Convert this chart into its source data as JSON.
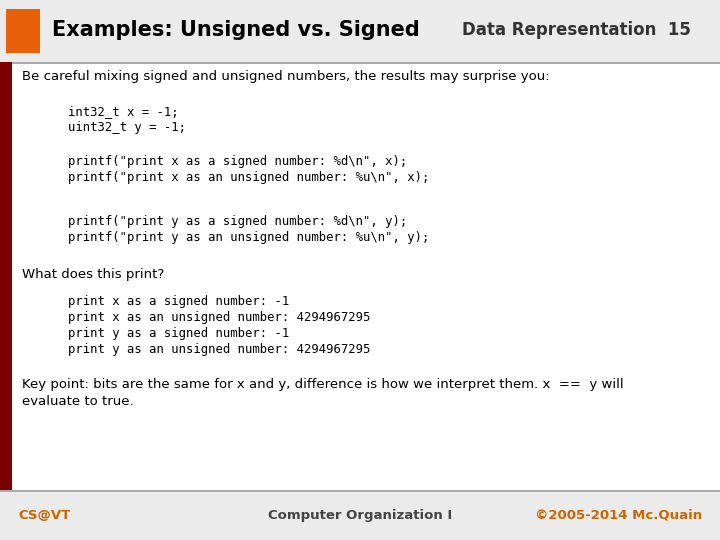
{
  "title_left": "Examples: Unsigned vs. Signed",
  "title_right": "Data Representation  15",
  "orange_rect_color": "#E8600A",
  "dark_red_left_bar": "#7B0000",
  "bg_color": "#EBEBEB",
  "header_bg": "#EBEBEB",
  "body_bg": "#FFFFFF",
  "footer_bg": "#EBEBEB",
  "title_color": "#000000",
  "title_right_color": "#333333",
  "body_text_color": "#000000",
  "code_color": "#000000",
  "footer_left": "CS@VT",
  "footer_center": "Computer Organization I",
  "footer_right": "©2005-2014 Mc.Quain",
  "intro_text": "Be careful mixing signed and unsigned numbers, the results may surprise you:",
  "code_block1_line1": "int32_t x = -1;",
  "code_block1_line2": "uint32_t y = -1;",
  "code_block2_line1": "printf(\"print x as a signed number: %d\\n\", x);",
  "code_block2_line2": "printf(\"print x as an unsigned number: %u\\n\", x);",
  "code_block3_line1": "printf(\"print y as a signed number: %d\\n\", y);",
  "code_block3_line2": "printf(\"print y as an unsigned number: %u\\n\", y);",
  "what_does": "What does this print?",
  "out1": "print x as a signed number: -1",
  "out2": "print x as an unsigned number: 4294967295",
  "out3": "print y as a signed number: -1",
  "out4": "print y as an unsigned number: 4294967295",
  "key_line1": "Key point: bits are the same for x and y, difference is how we interpret them. x  ==  y will",
  "key_line2": "evaluate to true."
}
